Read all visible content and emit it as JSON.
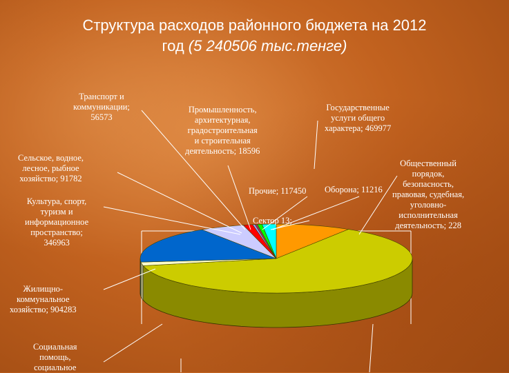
{
  "chart_data": {
    "type": "pie",
    "title_line1": "Структура расходов районного бюджета на 2012",
    "title_line2_prefix": "год",
    "title_line2_italic": "(5 240506 тыс.тенге)",
    "slices": [
      {
        "label": "Транспорт и коммуникации; 56573",
        "value": 56573,
        "color": "#ff9900"
      },
      {
        "label": "Промышленность, архитектурная, градостроительная и строительная деятельность; 18596",
        "value": 18596,
        "color": "#9999ff"
      },
      {
        "label": "Государственные услуги общего характера; 469977",
        "value": 469977,
        "color": "#ff9900"
      },
      {
        "label": "Общественный порядок, безопасность, правовая, судебная, уголовно-исполнительная деятельность; 228",
        "value": 228,
        "color": "#993366"
      },
      {
        "label": "Оборона; 11216",
        "value": 11216,
        "color": "#ffffcc"
      },
      {
        "label": "Прочие; 117450",
        "value": 117450,
        "color": "#00ffff"
      },
      {
        "label": "Сектор 13;",
        "value": 0,
        "color": "#00ff00"
      },
      {
        "label": "Сельское, водное, лесное, рыбное хозяйство; 91782",
        "value": 91782,
        "color": "#ff0000"
      },
      {
        "label": "Культура, спорт, туризм и информационное пространство; 346963",
        "value": 346963,
        "color": "#ccccff"
      },
      {
        "label": "Жилищно-коммунальное хозяйство; 904283",
        "value": 904283,
        "color": "#0066cc"
      },
      {
        "label": "Социальная помощь, социальное",
        "value": 0,
        "color": "#ffffcc"
      }
    ],
    "rendered_slices": [
      {
        "name": "Государственные услуги общего характера",
        "start_deg": -90,
        "end_deg": -58,
        "color": "#ff9900",
        "side": "#b86e00"
      },
      {
        "name": "main-yellow",
        "start_deg": -58,
        "end_deg": 168,
        "color": "#cccc00",
        "side": "#8a8a00"
      },
      {
        "name": "Социальная помощь",
        "start_deg": 168,
        "end_deg": 174,
        "color": "#ffffcc",
        "side": "#b5b58f"
      },
      {
        "name": "Жилищно-коммунальное хозяйство",
        "start_deg": 174,
        "end_deg": 237,
        "color": "#0066cc",
        "side": "#004488"
      },
      {
        "name": "Культура, спорт, туризм",
        "start_deg": 237,
        "end_deg": 256,
        "color": "#ccccff",
        "side": "#8f8fb3"
      },
      {
        "name": "Сельское, водное, лесное, рыбное хозяйство",
        "start_deg": 256,
        "end_deg": 260,
        "color": "#ff0000",
        "side": "#aa0000"
      },
      {
        "name": "Транспорт",
        "start_deg": 260,
        "end_deg": 261,
        "color": "#9999ff",
        "side": "#6666aa"
      },
      {
        "name": "Промышленность",
        "start_deg": 261,
        "end_deg": 262,
        "color": "#993366",
        "side": "#662244"
      },
      {
        "name": "Прочие",
        "start_deg": 262,
        "end_deg": 264,
        "color": "#00ff00",
        "side": "#00aa00"
      },
      {
        "name": "Сектор 13",
        "start_deg": 264,
        "end_deg": 270,
        "color": "#00ffff",
        "side": "#00aaaa"
      }
    ]
  },
  "labels": {
    "transport": [
      "Транспорт и",
      "коммуникации;",
      "56573"
    ],
    "industry": [
      "Промышленность,",
      "архитектурная,",
      "градостроительная",
      "и строительная",
      "деятельность; 18596"
    ],
    "state": [
      "Государственные",
      "услуги общего",
      "характера; 469977"
    ],
    "agri": [
      "Сельское, водное,",
      "лесное, рыбное",
      "хозяйство; 91782"
    ],
    "public_order": [
      "Общественный",
      "порядок,",
      "безопасность,",
      "правовая, судебная,",
      "уголовно-",
      "исполнительная",
      "деятельность; 228"
    ],
    "other": [
      "Прочие; 117450"
    ],
    "defense": [
      "Оборона; 11216"
    ],
    "culture": [
      "Культура, спорт,",
      "туризм и",
      "информационное",
      "пространство;",
      "346963"
    ],
    "sector13": [
      "Сектор 13;"
    ],
    "housing": [
      "Жилищно-",
      "коммунальное",
      "хозяйство; 904283"
    ],
    "social": [
      "Социальная",
      "помощь,",
      "социальное"
    ]
  }
}
